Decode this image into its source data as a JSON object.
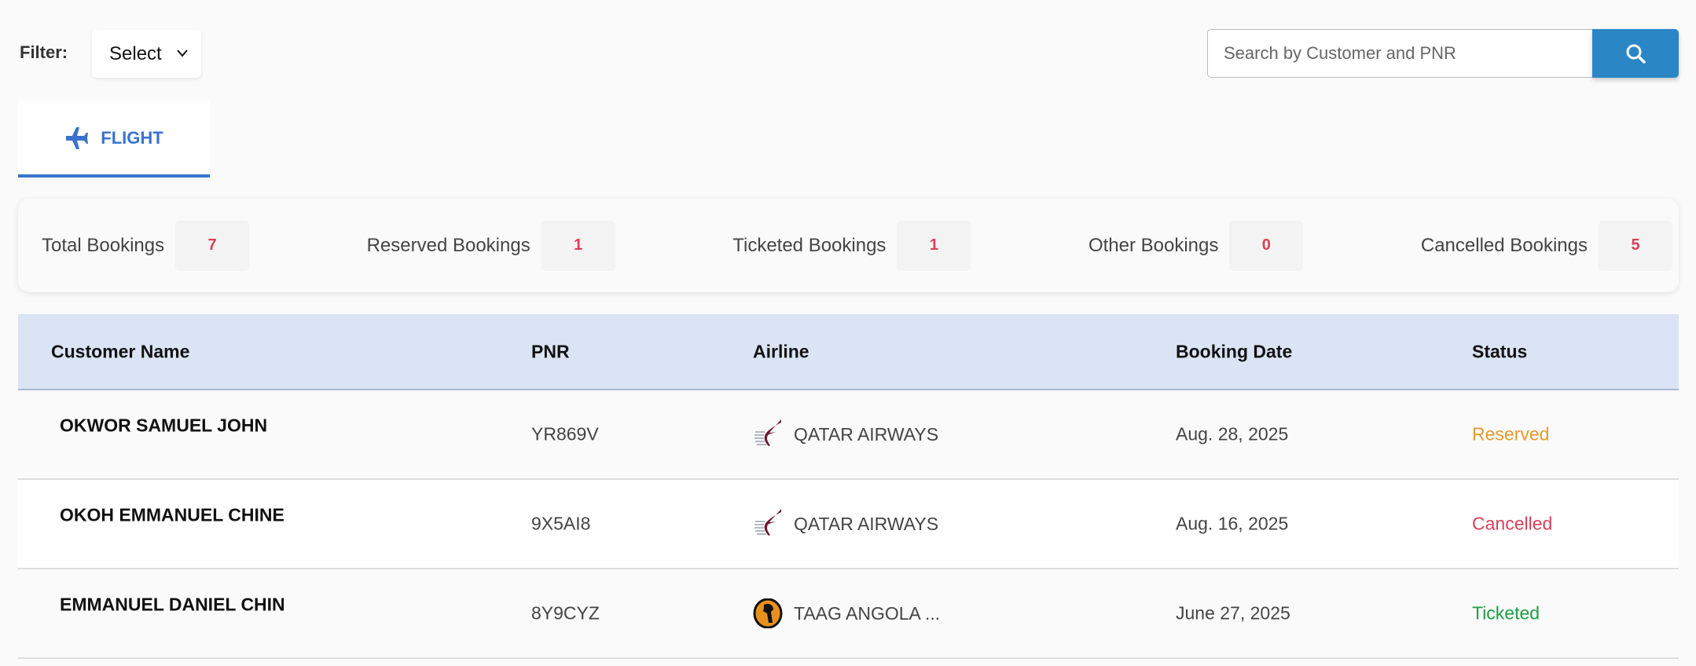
{
  "filter": {
    "label": "Filter:",
    "selected": "Select"
  },
  "search": {
    "placeholder": "Search by Customer and PNR",
    "icon": "search-icon"
  },
  "tabs": [
    {
      "label": "FLIGHT",
      "icon": "airplane-icon",
      "active": true
    }
  ],
  "stats": [
    {
      "label": "Total Bookings",
      "value": "7"
    },
    {
      "label": "Reserved Bookings",
      "value": "1"
    },
    {
      "label": "Ticketed Bookings",
      "value": "1"
    },
    {
      "label": "Other Bookings",
      "value": "0"
    },
    {
      "label": "Cancelled Bookings",
      "value": "5"
    }
  ],
  "table": {
    "columns": [
      "Customer Name",
      "PNR",
      "Airline",
      "Booking Date",
      "Status"
    ],
    "rows": [
      {
        "customer": "OKWOR SAMUEL JOHN",
        "pnr": "YR869V",
        "airline": "QATAR AIRWAYS",
        "logo": "qatar-airways-logo",
        "date": "Aug. 28, 2025",
        "status": "Reserved",
        "status_color": "#e59a2a"
      },
      {
        "customer": "OKOH EMMANUEL CHINE",
        "pnr": "9X5AI8",
        "airline": "QATAR AIRWAYS",
        "logo": "qatar-airways-logo",
        "date": "Aug. 16, 2025",
        "status": "Cancelled",
        "status_color": "#d9405a"
      },
      {
        "customer": "EMMANUEL DANIEL CHIN",
        "pnr": "8Y9CYZ",
        "airline": "TAAG ANGOLA ...",
        "logo": "taag-angola-logo",
        "date": "June 27, 2025",
        "status": "Ticketed",
        "status_color": "#1e9e45"
      }
    ]
  },
  "colors": {
    "accent": "#3a73cc",
    "search_button": "#2b86c5",
    "header_bg": "#dbe4f4",
    "count": "#d9405a"
  }
}
